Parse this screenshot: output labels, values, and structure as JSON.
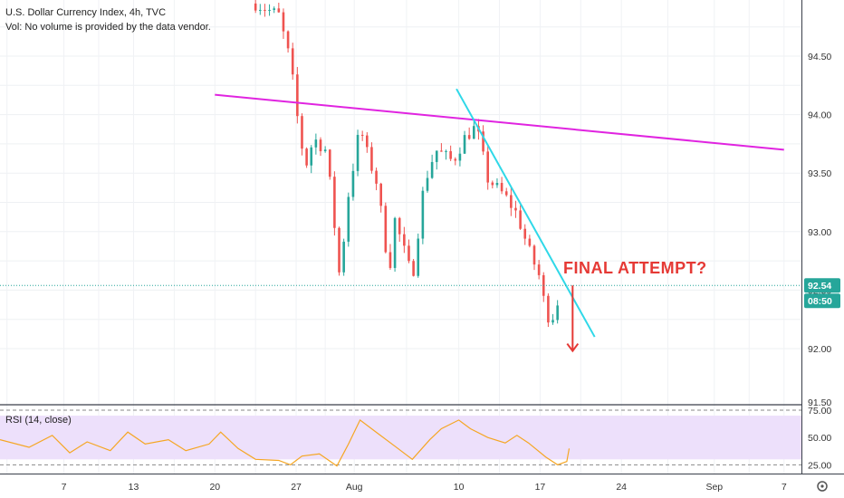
{
  "header": {
    "symbol_line": "U.S. Dollar Currency Index, 4h, TVC",
    "volume_line": "Vol: No volume is provided by the data vendor."
  },
  "chart_data": {
    "type": "candlestick",
    "title": "U.S. Dollar Currency Index, 4h, TVC",
    "y_ticks": [
      92.0,
      92.5,
      93.0,
      93.5,
      94.0,
      94.5
    ],
    "y_tick_labels": [
      "92.00",
      "92.50",
      "93.00",
      "93.50",
      "94.00",
      "94.50"
    ],
    "y_range": [
      91.52,
      94.98
    ],
    "x_ticks": [
      {
        "label": "7",
        "day": 7
      },
      {
        "label": "13",
        "day": 13
      },
      {
        "label": "20",
        "day": 20
      },
      {
        "label": "27",
        "day": 27
      },
      {
        "label": "Aug",
        "day": 32
      },
      {
        "label": "10",
        "day": 41
      },
      {
        "label": "17",
        "day": 48
      },
      {
        "label": "24",
        "day": 55
      },
      {
        "label": "Sep",
        "day": 63
      },
      {
        "label": "7",
        "day": 69
      }
    ],
    "x_range": [
      1.5,
      70.5
    ],
    "last_price": {
      "value": 92.54,
      "label": "92.54",
      "countdown": "08:50"
    },
    "price_path": [
      [
        23.5,
        94.95
      ],
      [
        25.5,
        94.85
      ],
      [
        26.5,
        94.45
      ],
      [
        27.2,
        93.9
      ],
      [
        27.8,
        93.55
      ],
      [
        28.5,
        93.8
      ],
      [
        29.5,
        93.7
      ],
      [
        30,
        93.35
      ],
      [
        30.8,
        92.55
      ],
      [
        31.3,
        93.2
      ],
      [
        32.5,
        93.9
      ],
      [
        33,
        93.7
      ],
      [
        34,
        93.4
      ],
      [
        35,
        92.65
      ],
      [
        35.5,
        93.1
      ],
      [
        37,
        92.6
      ],
      [
        38,
        93.4
      ],
      [
        39,
        93.7
      ],
      [
        40.5,
        93.6
      ],
      [
        41.5,
        93.8
      ],
      [
        42.5,
        93.9
      ],
      [
        43.5,
        93.45
      ],
      [
        45,
        93.3
      ],
      [
        46,
        93.15
      ],
      [
        47,
        92.85
      ],
      [
        48,
        92.6
      ],
      [
        48.5,
        92.3
      ],
      [
        49,
        92.25
      ],
      [
        49.5,
        92.4
      ]
    ],
    "annotations": {
      "horizontal_trendline": {
        "from": [
          20,
          94.17
        ],
        "to": [
          69,
          93.7
        ],
        "color": "#e024e0"
      },
      "descending_trendline": {
        "from": [
          40.8,
          94.22
        ],
        "to": [
          52.7,
          92.1
        ],
        "color": "#2fd8e8"
      },
      "arrow": {
        "x": 50.8,
        "from": 92.54,
        "to": 91.98,
        "color": "#e53935"
      },
      "text": "FINAL ATTEMPT?",
      "text_color": "#e53935"
    },
    "rsi": {
      "label": "RSI (14, close)",
      "levels": [
        25,
        50,
        75
      ],
      "level_labels": [
        "25.00",
        "50.00",
        "75.00"
      ],
      "band": [
        30,
        70
      ],
      "path": [
        [
          1.5,
          48
        ],
        [
          4,
          41
        ],
        [
          6,
          52
        ],
        [
          7.5,
          36
        ],
        [
          9,
          46
        ],
        [
          11,
          38
        ],
        [
          12.5,
          55
        ],
        [
          14,
          44
        ],
        [
          16,
          48
        ],
        [
          17.5,
          38
        ],
        [
          19.5,
          44
        ],
        [
          20.5,
          55
        ],
        [
          22,
          40
        ],
        [
          23.5,
          30
        ],
        [
          25.5,
          29
        ],
        [
          26.5,
          25
        ],
        [
          27.5,
          33
        ],
        [
          29,
          35
        ],
        [
          30.5,
          24
        ],
        [
          31.5,
          44
        ],
        [
          32.5,
          66
        ],
        [
          34,
          54
        ],
        [
          35.5,
          42
        ],
        [
          37,
          30
        ],
        [
          38.5,
          48
        ],
        [
          39.5,
          58
        ],
        [
          41,
          66
        ],
        [
          42,
          58
        ],
        [
          43.5,
          50
        ],
        [
          45,
          45
        ],
        [
          46,
          52
        ],
        [
          47,
          45
        ],
        [
          48.5,
          32
        ],
        [
          49.5,
          25
        ],
        [
          50.3,
          28
        ],
        [
          50.5,
          40
        ]
      ]
    }
  }
}
